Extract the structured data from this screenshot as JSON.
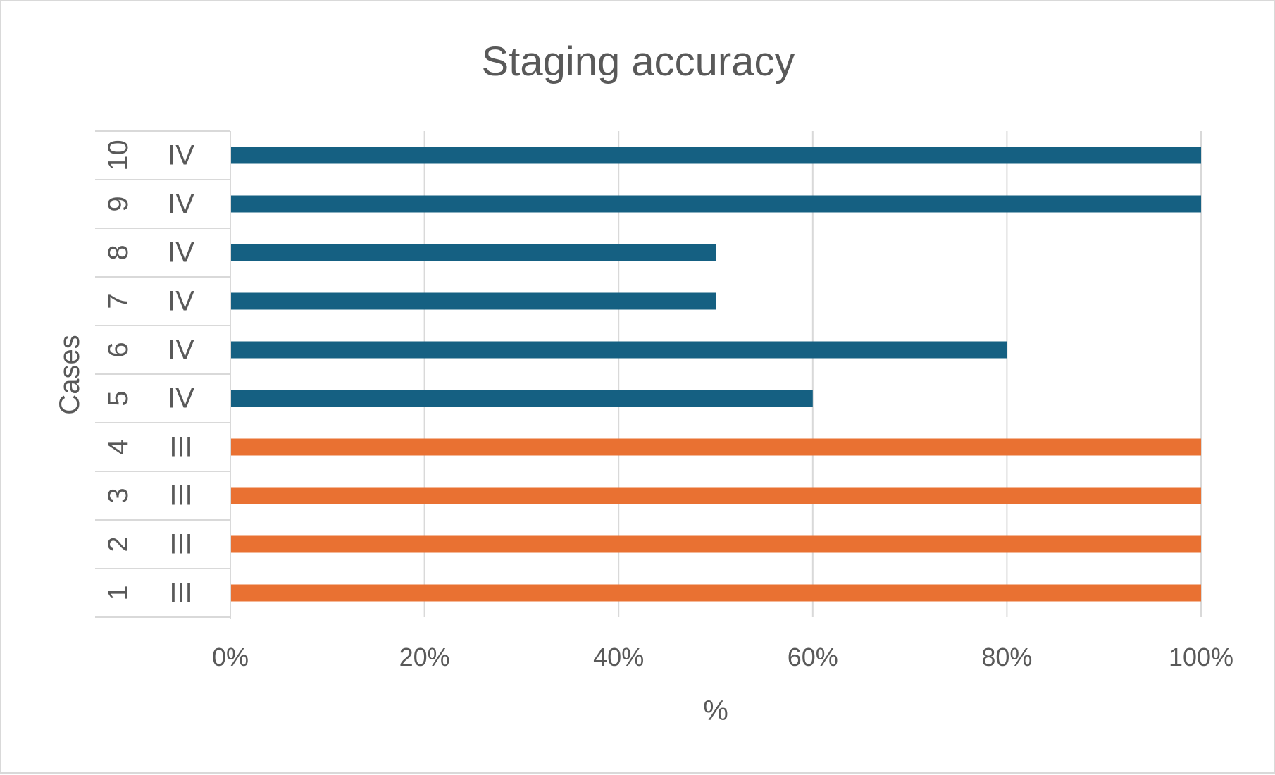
{
  "chart_data": {
    "type": "bar",
    "orientation": "horizontal",
    "title": "Staging accuracy",
    "xlabel": "%",
    "ylabel": "Cases",
    "xlim": [
      0,
      100
    ],
    "x_ticks": [
      "0%",
      "20%",
      "40%",
      "60%",
      "80%",
      "100%"
    ],
    "grid": true,
    "categories": [
      {
        "case": "1",
        "stage": "III"
      },
      {
        "case": "2",
        "stage": "III"
      },
      {
        "case": "3",
        "stage": "III"
      },
      {
        "case": "4",
        "stage": "III"
      },
      {
        "case": "5",
        "stage": "IV"
      },
      {
        "case": "6",
        "stage": "IV"
      },
      {
        "case": "7",
        "stage": "IV"
      },
      {
        "case": "8",
        "stage": "IV"
      },
      {
        "case": "9",
        "stage": "IV"
      },
      {
        "case": "10",
        "stage": "IV"
      }
    ],
    "values": [
      100,
      100,
      100,
      100,
      60,
      80,
      50,
      50,
      100,
      100
    ],
    "colors": {
      "III": "#E97132",
      "IV": "#156082"
    }
  }
}
